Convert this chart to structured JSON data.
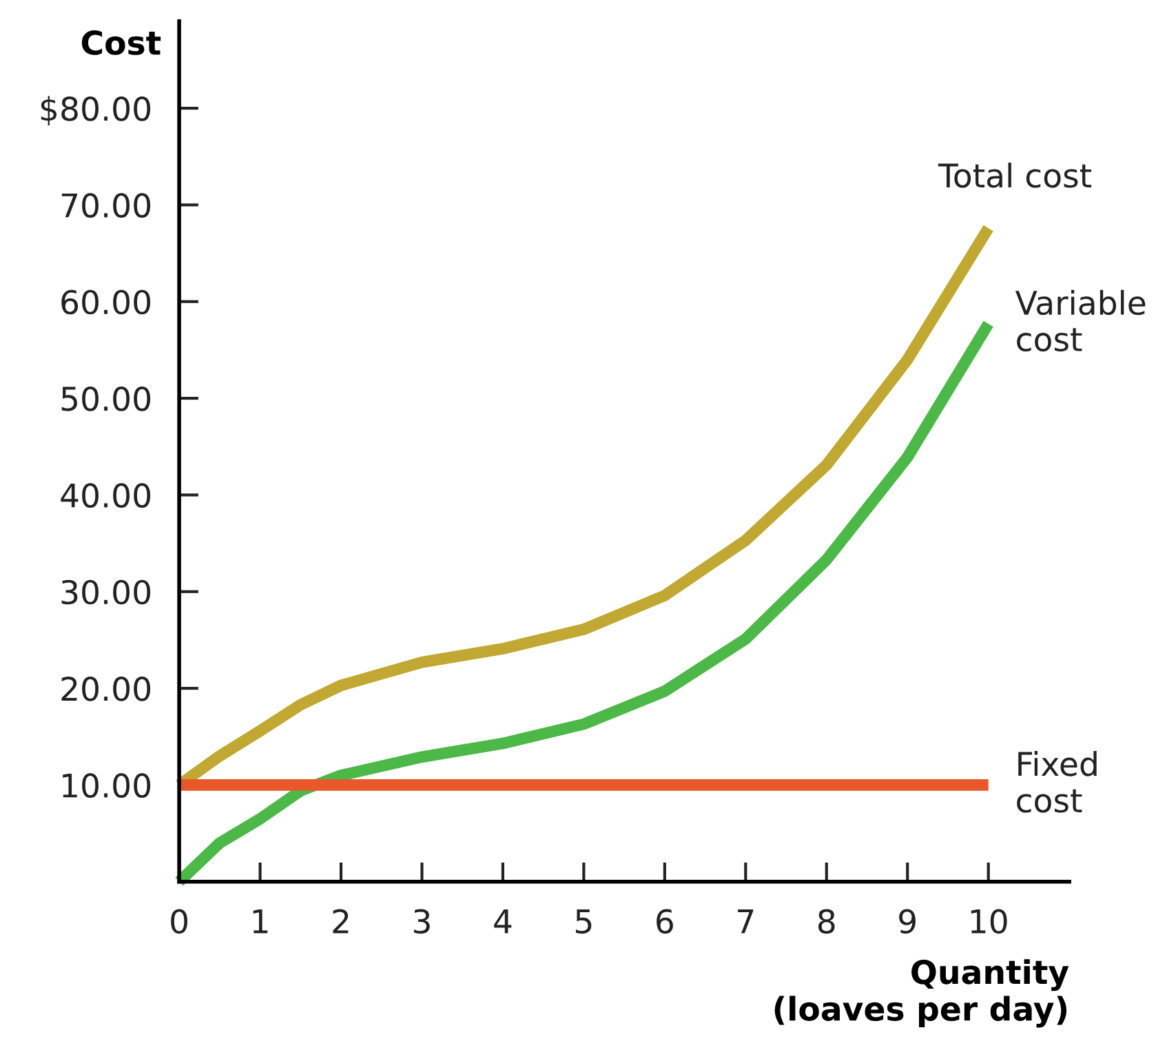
{
  "chart_data": {
    "type": "line",
    "xlabel": "Quantity\n(loaves per day)",
    "ylabel": "Cost",
    "xlim": [
      0,
      11
    ],
    "ylim": [
      0,
      89
    ],
    "xticks": [
      0,
      1,
      2,
      3,
      4,
      5,
      6,
      7,
      8,
      9,
      10
    ],
    "yticks": [
      {
        "value": 10,
        "label": "10.00"
      },
      {
        "value": 20,
        "label": "20.00"
      },
      {
        "value": 30,
        "label": "30.00"
      },
      {
        "value": 40,
        "label": "40.00"
      },
      {
        "value": 50,
        "label": "50.00"
      },
      {
        "value": 60,
        "label": "60.00"
      },
      {
        "value": 70,
        "label": "70.00"
      },
      {
        "value": 80,
        "label": "$80.00"
      }
    ],
    "grid": false,
    "legend": false,
    "marker": "none",
    "line_style": "solid",
    "series": [
      {
        "name": "Total cost",
        "color": "#c0a832",
        "x": [
          0,
          0.5,
          1,
          1.5,
          2,
          3,
          4,
          5,
          6,
          7,
          8,
          9,
          10
        ],
        "values": [
          10,
          13,
          15.6,
          18.3,
          20.3,
          22.7,
          24.1,
          26.1,
          29.6,
          35.3,
          43.1,
          54,
          67.6
        ]
      },
      {
        "name": "Variable\ncost",
        "color": "#4cb848",
        "x": [
          0,
          0.5,
          1,
          1.5,
          2,
          3,
          4,
          5,
          6,
          7,
          8,
          9,
          10
        ],
        "values": [
          0,
          4,
          6.5,
          9.4,
          11,
          12.9,
          14.3,
          16.3,
          19.7,
          25.1,
          33.3,
          43.9,
          57.7
        ]
      },
      {
        "name": "Fixed\ncost",
        "color": "#e8582a",
        "x": [
          0,
          10
        ],
        "values": [
          10,
          10
        ]
      }
    ]
  }
}
